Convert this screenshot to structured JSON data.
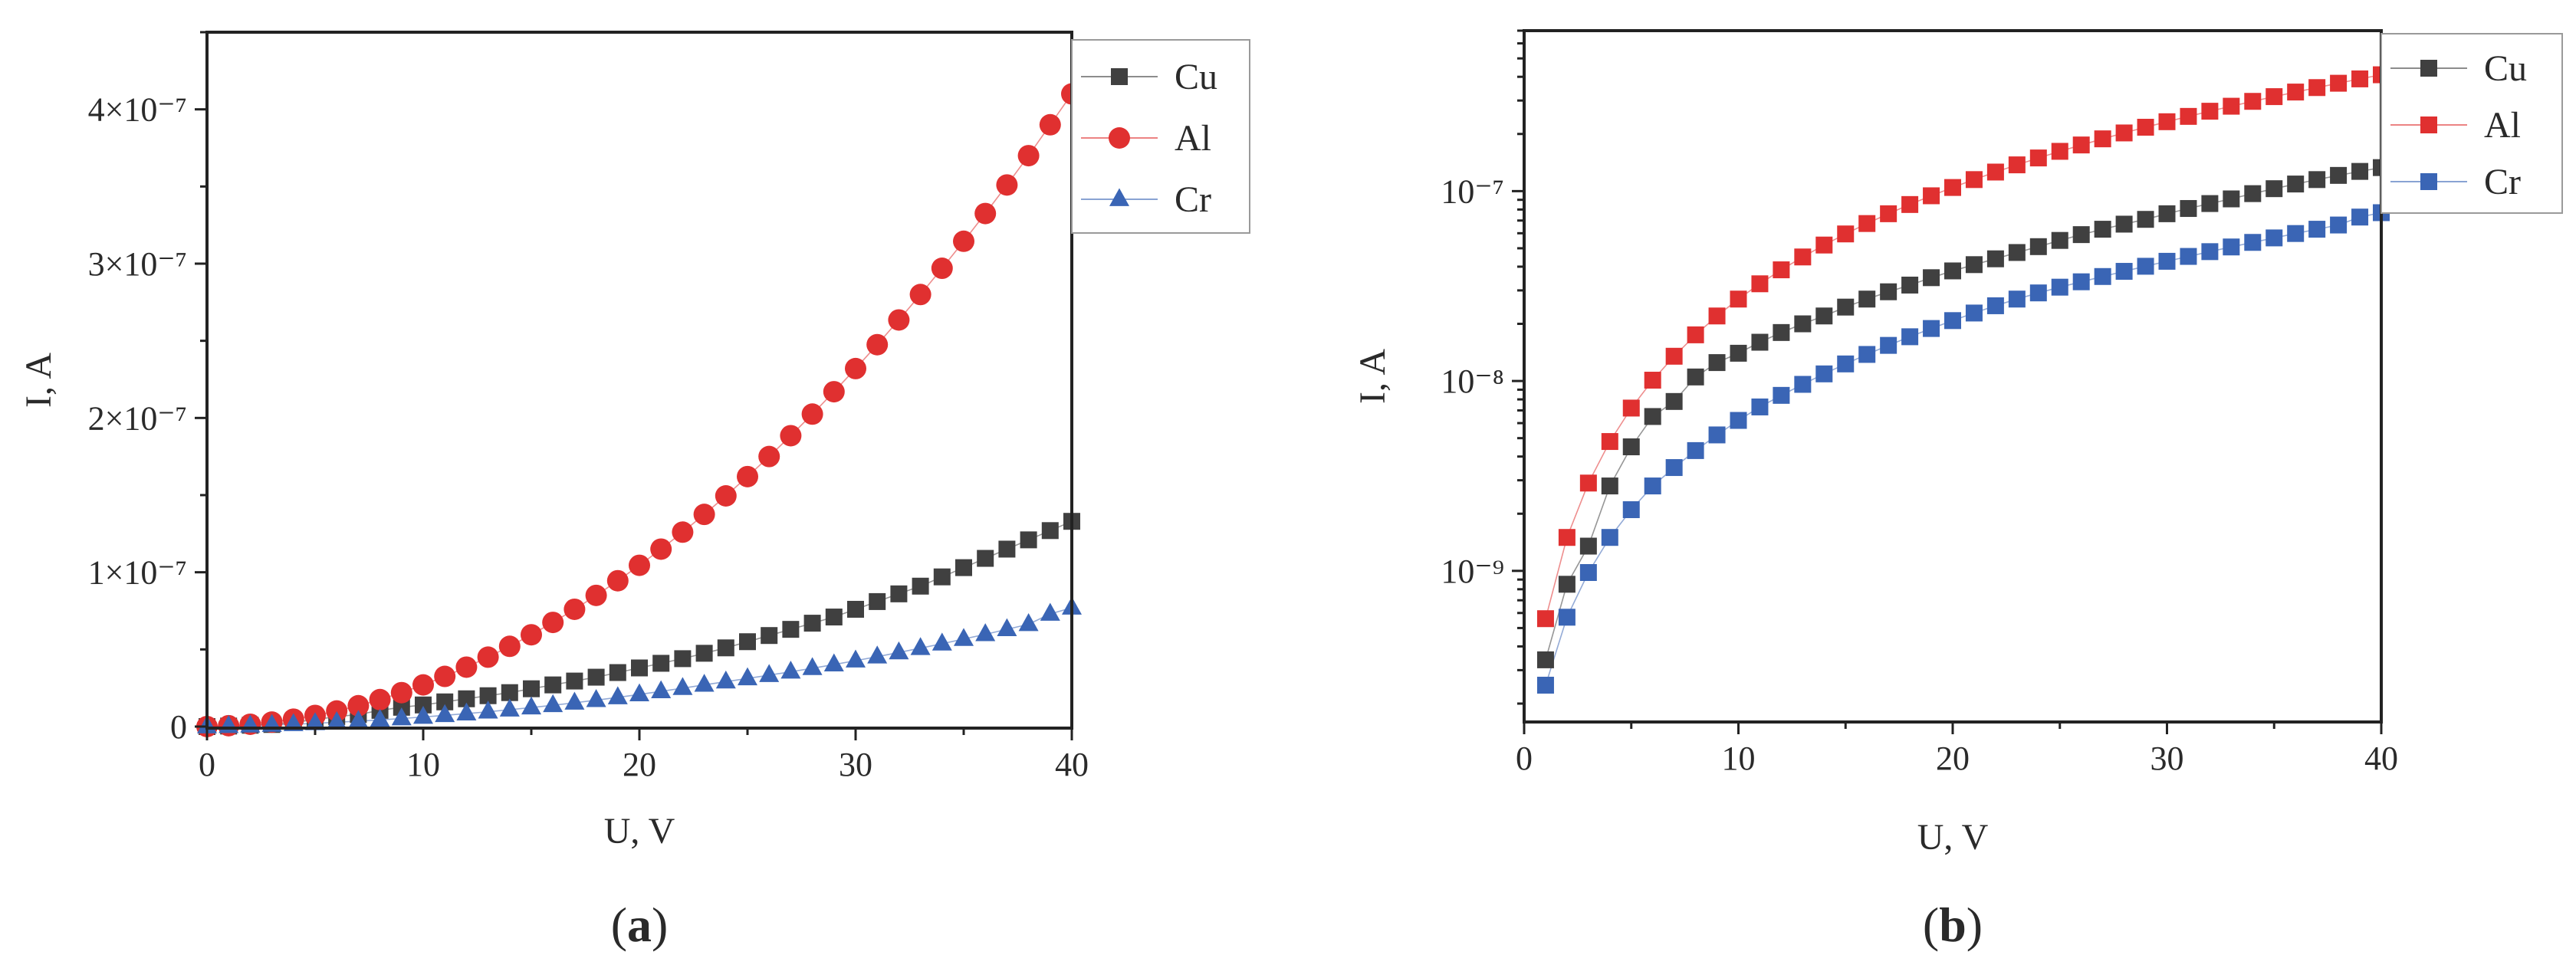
{
  "chart_data": [
    {
      "panel": "(a)",
      "panel_letter": "a",
      "type": "scatter",
      "yscale": "linear",
      "xlabel": "U, V",
      "ylabel": "I, A",
      "xlim": [
        0,
        40
      ],
      "ylim": [
        -1e-09,
        4.5e-07
      ],
      "xticks": [
        {
          "value": 0,
          "label": "0"
        },
        {
          "value": 10,
          "label": "10"
        },
        {
          "value": 20,
          "label": "20"
        },
        {
          "value": 30,
          "label": "30"
        },
        {
          "value": 40,
          "label": "40"
        }
      ],
      "yticks": [
        {
          "value": 0,
          "label": "0"
        },
        {
          "value": 1e-07,
          "label": "1×10⁻⁷"
        },
        {
          "value": 2e-07,
          "label": "2×10⁻⁷"
        },
        {
          "value": 3e-07,
          "label": "3×10⁻⁷"
        },
        {
          "value": 4e-07,
          "label": "4×10⁻⁷"
        }
      ],
      "legend_position": "top-right-outside",
      "series": [
        {
          "name": "Cu",
          "color": "#404040",
          "marker": "square",
          "x": [
            0,
            1,
            2,
            3,
            4,
            5,
            6,
            7,
            8,
            9,
            10,
            11,
            12,
            13,
            14,
            15,
            16,
            17,
            18,
            19,
            20,
            21,
            22,
            23,
            24,
            25,
            26,
            27,
            28,
            29,
            30,
            31,
            32,
            33,
            34,
            35,
            36,
            37,
            38,
            39,
            40
          ],
          "y": [
            0,
            3.4e-10,
            8.5e-10,
            1.35e-09,
            2.8e-09,
            4.5e-09,
            6.5e-09,
            7.8e-09,
            1.05e-08,
            1.25e-08,
            1.4e-08,
            1.6e-08,
            1.8e-08,
            2e-08,
            2.2e-08,
            2.45e-08,
            2.7e-08,
            2.95e-08,
            3.2e-08,
            3.5e-08,
            3.8e-08,
            4.1e-08,
            4.4e-08,
            4.75e-08,
            5.1e-08,
            5.5e-08,
            5.9e-08,
            6.3e-08,
            6.7e-08,
            7.1e-08,
            7.6e-08,
            8.1e-08,
            8.6e-08,
            9.1e-08,
            9.7e-08,
            1.03e-07,
            1.09e-07,
            1.15e-07,
            1.21e-07,
            1.27e-07,
            1.33e-07
          ]
        },
        {
          "name": "Al",
          "color": "#e03030",
          "marker": "circle",
          "x": [
            0,
            1,
            2,
            3,
            4,
            5,
            6,
            7,
            8,
            9,
            10,
            11,
            12,
            13,
            14,
            15,
            16,
            17,
            18,
            19,
            20,
            21,
            22,
            23,
            24,
            25,
            26,
            27,
            28,
            29,
            30,
            31,
            32,
            33,
            34,
            35,
            36,
            37,
            38,
            39,
            40
          ],
          "y": [
            0,
            5.6e-10,
            1.5e-09,
            2.9e-09,
            4.8e-09,
            7.2e-09,
            1.01e-08,
            1.35e-08,
            1.75e-08,
            2.2e-08,
            2.7e-08,
            3.25e-08,
            3.85e-08,
            4.5e-08,
            5.2e-08,
            5.95e-08,
            6.75e-08,
            7.6e-08,
            8.5e-08,
            9.45e-08,
            1.045e-07,
            1.15e-07,
            1.26e-07,
            1.375e-07,
            1.495e-07,
            1.62e-07,
            1.75e-07,
            1.885e-07,
            2.025e-07,
            2.17e-07,
            2.32e-07,
            2.475e-07,
            2.635e-07,
            2.8e-07,
            2.97e-07,
            3.145e-07,
            3.325e-07,
            3.51e-07,
            3.7e-07,
            3.9e-07,
            4.1e-07
          ]
        },
        {
          "name": "Cr",
          "color": "#3a65b5",
          "marker": "triangle",
          "x": [
            0,
            1,
            2,
            3,
            4,
            5,
            6,
            7,
            8,
            9,
            10,
            11,
            12,
            13,
            14,
            15,
            16,
            17,
            18,
            19,
            20,
            21,
            22,
            23,
            24,
            25,
            26,
            27,
            28,
            29,
            30,
            31,
            32,
            33,
            34,
            35,
            36,
            37,
            38,
            39,
            40
          ],
          "y": [
            0,
            2.5e-10,
            5.7e-10,
            9.8e-10,
            1.5e-09,
            2.1e-09,
            2.8e-09,
            3.5e-09,
            4.3e-09,
            5.2e-09,
            6.2e-09,
            7.3e-09,
            8.4e-09,
            9.6e-09,
            1.09e-08,
            1.23e-08,
            1.38e-08,
            1.54e-08,
            1.71e-08,
            1.89e-08,
            2.08e-08,
            2.28e-08,
            2.49e-08,
            2.7e-08,
            2.91e-08,
            3.12e-08,
            3.33e-08,
            3.55e-08,
            3.78e-08,
            4.02e-08,
            4.27e-08,
            4.53e-08,
            4.8e-08,
            5.08e-08,
            5.37e-08,
            5.67e-08,
            5.98e-08,
            6.3e-08,
            6.63e-08,
            7.3e-08,
            7.7e-08
          ]
        }
      ]
    },
    {
      "panel": "(b)",
      "panel_letter": "b",
      "type": "scatter",
      "yscale": "log",
      "xlabel": "U, V",
      "ylabel": "I, A",
      "xlim": [
        0,
        40
      ],
      "ylim": [
        1.6e-10,
        7e-07
      ],
      "xticks": [
        {
          "value": 0,
          "label": "0"
        },
        {
          "value": 10,
          "label": "10"
        },
        {
          "value": 20,
          "label": "20"
        },
        {
          "value": 30,
          "label": "30"
        },
        {
          "value": 40,
          "label": "40"
        }
      ],
      "yticks": [
        {
          "value": 1e-09,
          "label": "10⁻⁹"
        },
        {
          "value": 1e-08,
          "label": "10⁻⁸"
        },
        {
          "value": 1e-07,
          "label": "10⁻⁷"
        }
      ],
      "legend_position": "top-right-outside",
      "series": [
        {
          "name": "Cu",
          "color": "#404040",
          "marker": "square",
          "x": [
            1,
            2,
            3,
            4,
            5,
            6,
            7,
            8,
            9,
            10,
            11,
            12,
            13,
            14,
            15,
            16,
            17,
            18,
            19,
            20,
            21,
            22,
            23,
            24,
            25,
            26,
            27,
            28,
            29,
            30,
            31,
            32,
            33,
            34,
            35,
            36,
            37,
            38,
            39,
            40
          ],
          "y": [
            3.4e-10,
            8.5e-10,
            1.35e-09,
            2.8e-09,
            4.5e-09,
            6.5e-09,
            7.8e-09,
            1.05e-08,
            1.25e-08,
            1.4e-08,
            1.6e-08,
            1.8e-08,
            2e-08,
            2.2e-08,
            2.45e-08,
            2.7e-08,
            2.95e-08,
            3.2e-08,
            3.5e-08,
            3.8e-08,
            4.1e-08,
            4.4e-08,
            4.75e-08,
            5.1e-08,
            5.5e-08,
            5.9e-08,
            6.3e-08,
            6.7e-08,
            7.1e-08,
            7.6e-08,
            8.1e-08,
            8.6e-08,
            9.1e-08,
            9.7e-08,
            1.03e-07,
            1.09e-07,
            1.15e-07,
            1.21e-07,
            1.27e-07,
            1.33e-07
          ]
        },
        {
          "name": "Al",
          "color": "#e03030",
          "marker": "square",
          "x": [
            1,
            2,
            3,
            4,
            5,
            6,
            7,
            8,
            9,
            10,
            11,
            12,
            13,
            14,
            15,
            16,
            17,
            18,
            19,
            20,
            21,
            22,
            23,
            24,
            25,
            26,
            27,
            28,
            29,
            30,
            31,
            32,
            33,
            34,
            35,
            36,
            37,
            38,
            39,
            40
          ],
          "y": [
            5.6e-10,
            1.5e-09,
            2.9e-09,
            4.8e-09,
            7.2e-09,
            1.01e-08,
            1.35e-08,
            1.75e-08,
            2.2e-08,
            2.7e-08,
            3.25e-08,
            3.85e-08,
            4.5e-08,
            5.2e-08,
            5.95e-08,
            6.75e-08,
            7.6e-08,
            8.5e-08,
            9.45e-08,
            1.045e-07,
            1.15e-07,
            1.26e-07,
            1.375e-07,
            1.495e-07,
            1.62e-07,
            1.75e-07,
            1.885e-07,
            2.025e-07,
            2.17e-07,
            2.32e-07,
            2.475e-07,
            2.635e-07,
            2.8e-07,
            2.97e-07,
            3.145e-07,
            3.325e-07,
            3.51e-07,
            3.7e-07,
            3.9e-07,
            4.1e-07
          ]
        },
        {
          "name": "Cr",
          "color": "#3a65b5",
          "marker": "square",
          "x": [
            1,
            2,
            3,
            4,
            5,
            6,
            7,
            8,
            9,
            10,
            11,
            12,
            13,
            14,
            15,
            16,
            17,
            18,
            19,
            20,
            21,
            22,
            23,
            24,
            25,
            26,
            27,
            28,
            29,
            30,
            31,
            32,
            33,
            34,
            35,
            36,
            37,
            38,
            39,
            40
          ],
          "y": [
            2.5e-10,
            5.7e-10,
            9.8e-10,
            1.5e-09,
            2.1e-09,
            2.8e-09,
            3.5e-09,
            4.3e-09,
            5.2e-09,
            6.2e-09,
            7.3e-09,
            8.4e-09,
            9.6e-09,
            1.09e-08,
            1.23e-08,
            1.38e-08,
            1.54e-08,
            1.71e-08,
            1.89e-08,
            2.08e-08,
            2.28e-08,
            2.49e-08,
            2.7e-08,
            2.91e-08,
            3.12e-08,
            3.33e-08,
            3.55e-08,
            3.78e-08,
            4.02e-08,
            4.27e-08,
            4.53e-08,
            4.8e-08,
            5.08e-08,
            5.37e-08,
            5.67e-08,
            5.98e-08,
            6.3e-08,
            6.63e-08,
            7.3e-08,
            7.7e-08
          ]
        }
      ]
    }
  ]
}
